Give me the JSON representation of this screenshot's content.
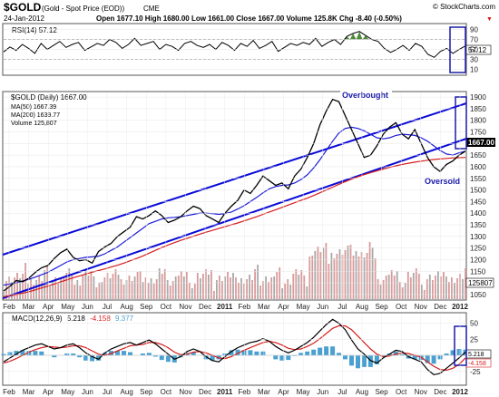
{
  "header": {
    "symbol": "$GOLD",
    "name": "(Gold - Spot Price (EOD))",
    "exchange": "CME",
    "date": "24-Jan-2012",
    "source": "© StockCharts.com",
    "quote": "Open 1677.10  High 1680.00  Low 1661.00  Close 1667.00  Volume 125.8K  Chg -8.40 (-0.50%)",
    "chg_arrow": "▼"
  },
  "colors": {
    "price": "#000000",
    "ma50": "#1c1cd6",
    "ma200": "#d61c1c",
    "volume": "#d99a9a",
    "volume_up": "#a8a8a8",
    "trendline": "#0a0ad8",
    "rsi_fill": "#4f8a3a",
    "macd_hist": "#4aa0d0",
    "annotation": "#1a1aa8"
  },
  "chart_data": [
    {
      "type": "line",
      "panel": "rsi",
      "legend": "RSI(14) 57.12",
      "value_box": "57.12",
      "y_ticks": [
        "90",
        "70",
        "50",
        "30",
        "10"
      ],
      "ylim": [
        0,
        100
      ],
      "guides": [
        30,
        70
      ],
      "series": [
        {
          "name": "RSI(14)",
          "values": [
            45,
            55,
            48,
            60,
            52,
            42,
            62,
            50,
            58,
            66,
            54,
            60,
            64,
            48,
            55,
            62,
            58,
            70,
            64,
            52,
            60,
            72,
            58,
            62,
            66,
            50,
            60,
            56,
            48,
            62,
            66,
            58,
            54,
            60,
            50,
            64,
            58,
            48,
            62,
            56,
            68,
            52,
            58,
            66,
            46,
            54,
            62,
            58,
            64,
            60,
            72,
            56,
            64,
            70,
            60,
            76,
            82,
            86,
            78,
            70,
            66,
            52,
            44,
            50,
            58,
            48,
            62,
            56,
            40,
            34,
            46,
            52,
            42,
            50,
            57
          ]
        }
      ]
    },
    {
      "type": "line",
      "panel": "price",
      "title": "$GOLD (Daily) 1667.00",
      "legend": [
        "MA(50) 1667.39",
        "MA(200) 1639.77",
        "Volume 125,807"
      ],
      "value_box": "1667.00",
      "y_ticks": [
        "1900",
        "1850",
        "1800",
        "1750",
        "1700",
        "1650",
        "1600",
        "1550",
        "1500",
        "1450",
        "1400",
        "1350",
        "1300",
        "1250",
        "1200",
        "1150",
        "1100",
        "1050"
      ],
      "ylim": [
        1030,
        1920
      ],
      "x_ticks": [
        "Feb",
        "Mar",
        "Apr",
        "May",
        "Jun",
        "Jul",
        "Aug",
        "Sep",
        "Oct",
        "Nov",
        "Dec",
        "2011",
        "Feb",
        "Mar",
        "Apr",
        "May",
        "Jun",
        "Jul",
        "Aug",
        "Sep",
        "Oct",
        "Nov",
        "Dec",
        "2012"
      ],
      "volume_box": "125807",
      "series": [
        {
          "name": "$GOLD",
          "values": [
            1065,
            1085,
            1110,
            1105,
            1120,
            1145,
            1165,
            1175,
            1205,
            1230,
            1245,
            1210,
            1195,
            1200,
            1185,
            1235,
            1255,
            1270,
            1300,
            1320,
            1340,
            1385,
            1375,
            1390,
            1410,
            1390,
            1360,
            1370,
            1385,
            1410,
            1430,
            1420,
            1390,
            1375,
            1360,
            1400,
            1430,
            1455,
            1500,
            1485,
            1520,
            1560,
            1540,
            1520,
            1530,
            1505,
            1560,
            1590,
            1640,
            1700,
            1780,
            1840,
            1890,
            1880,
            1820,
            1760,
            1700,
            1640,
            1650,
            1690,
            1740,
            1770,
            1790,
            1740,
            1720,
            1760,
            1700,
            1640,
            1600,
            1580,
            1610,
            1625,
            1650,
            1667
          ]
        },
        {
          "name": "MA(50)",
          "values": [
            1090,
            1095,
            1100,
            1108,
            1115,
            1125,
            1135,
            1145,
            1160,
            1175,
            1190,
            1200,
            1205,
            1210,
            1212,
            1215,
            1225,
            1240,
            1255,
            1275,
            1295,
            1315,
            1335,
            1355,
            1365,
            1375,
            1380,
            1382,
            1385,
            1390,
            1395,
            1400,
            1400,
            1398,
            1395,
            1398,
            1405,
            1418,
            1432,
            1450,
            1468,
            1488,
            1505,
            1515,
            1520,
            1522,
            1530,
            1545,
            1565,
            1595,
            1630,
            1670,
            1710,
            1745,
            1765,
            1770,
            1765,
            1755,
            1740,
            1725,
            1720,
            1725,
            1735,
            1740,
            1738,
            1735,
            1725,
            1710,
            1690,
            1670,
            1655,
            1650,
            1660,
            1667
          ]
        },
        {
          "name": "MA(200)",
          "values": [
            1040,
            1045,
            1050,
            1055,
            1062,
            1070,
            1078,
            1086,
            1095,
            1104,
            1113,
            1122,
            1130,
            1138,
            1146,
            1153,
            1160,
            1168,
            1176,
            1185,
            1195,
            1205,
            1216,
            1228,
            1240,
            1252,
            1263,
            1273,
            1283,
            1292,
            1301,
            1310,
            1318,
            1326,
            1334,
            1342,
            1350,
            1358,
            1367,
            1376,
            1385,
            1395,
            1405,
            1415,
            1425,
            1435,
            1445,
            1455,
            1465,
            1476,
            1488,
            1500,
            1512,
            1524,
            1536,
            1547,
            1557,
            1566,
            1574,
            1582,
            1590,
            1597,
            1604,
            1610,
            1615,
            1620,
            1624,
            1628,
            1631,
            1634,
            1636,
            1638,
            1639,
            1640
          ]
        }
      ],
      "annotations": [
        "Overbought",
        "Oversold"
      ]
    },
    {
      "type": "line",
      "panel": "macd",
      "legend": "MACD(12,26,9) 5.218, -4.158, 9.377",
      "legend_parts": {
        "label": "MACD(12,26,9)",
        "macd": "5.218",
        "signal": "-4.158",
        "hist": "9.377"
      },
      "value_boxes": [
        "5.218",
        "-4.158"
      ],
      "y_ticks": [
        "50",
        "25",
        "0",
        "-25"
      ],
      "ylim": [
        -45,
        65
      ],
      "x_ticks": [
        "Feb",
        "Mar",
        "Apr",
        "May",
        "Jun",
        "Jul",
        "Aug",
        "Sep",
        "Oct",
        "Nov",
        "Dec",
        "2011",
        "Feb",
        "Mar",
        "Apr",
        "May",
        "Jun",
        "Jul",
        "Aug",
        "Sep",
        "Oct",
        "Nov",
        "Dec",
        "2012"
      ],
      "series": [
        {
          "name": "MACD",
          "values": [
            -10,
            -4,
            2,
            8,
            12,
            16,
            18,
            14,
            10,
            12,
            16,
            18,
            12,
            4,
            -2,
            -6,
            4,
            10,
            14,
            18,
            20,
            16,
            20,
            24,
            18,
            10,
            2,
            -6,
            -2,
            6,
            10,
            6,
            -2,
            -8,
            -10,
            -2,
            6,
            12,
            16,
            20,
            22,
            26,
            22,
            14,
            8,
            4,
            8,
            14,
            20,
            28,
            38,
            48,
            56,
            50,
            40,
            24,
            10,
            2,
            -8,
            -12,
            -4,
            2,
            8,
            6,
            -2,
            -6,
            -10,
            -22,
            -30,
            -28,
            -20,
            -12,
            -4,
            5
          ]
        },
        {
          "name": "Signal",
          "values": [
            -12,
            -9,
            -5,
            0,
            5,
            9,
            12,
            14,
            13,
            12,
            13,
            15,
            15,
            12,
            7,
            2,
            0,
            3,
            7,
            11,
            15,
            16,
            17,
            20,
            20,
            17,
            12,
            5,
            1,
            2,
            5,
            6,
            4,
            0,
            -4,
            -5,
            -2,
            3,
            8,
            12,
            16,
            20,
            22,
            20,
            16,
            11,
            9,
            10,
            14,
            19,
            26,
            34,
            42,
            46,
            46,
            40,
            30,
            20,
            10,
            2,
            -2,
            -1,
            2,
            4,
            3,
            0,
            -3,
            -10,
            -17,
            -22,
            -23,
            -20,
            -14,
            -4
          ]
        }
      ]
    }
  ]
}
